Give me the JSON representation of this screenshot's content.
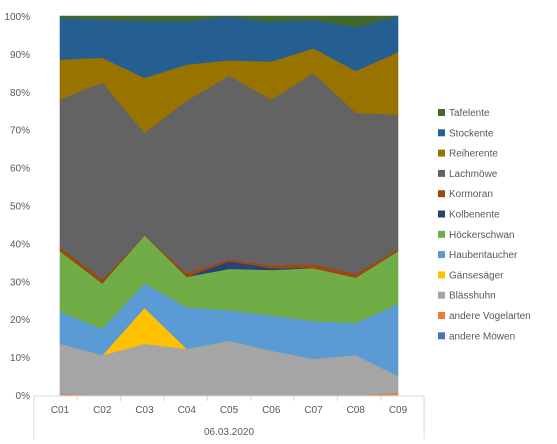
{
  "chart_data": {
    "type": "area",
    "stacked": "percent",
    "categories": [
      "C01",
      "C02",
      "C03",
      "C04",
      "C05",
      "C06",
      "C07",
      "C08",
      "C09"
    ],
    "group_label": "06.03.2020",
    "y_ticks": [
      "0%",
      "10%",
      "20%",
      "30%",
      "40%",
      "50%",
      "60%",
      "70%",
      "80%",
      "90%",
      "100%"
    ],
    "ylim": [
      0,
      100
    ],
    "grid": false,
    "legend_position": "right",
    "series": [
      {
        "name": "andere Möwen",
        "color": "#4472c4",
        "values": [
          0,
          0,
          0,
          0,
          0,
          0,
          0,
          0,
          0
        ]
      },
      {
        "name": "andere Vogelarten",
        "color": "#ed7d31",
        "values": [
          0.3,
          0,
          0,
          0,
          0,
          0,
          0,
          0,
          0.5
        ]
      },
      {
        "name": "Blässhuhn",
        "color": "#a5a5a5",
        "values": [
          13.2,
          10.5,
          13.5,
          12.2,
          14.3,
          11.7,
          9.5,
          10.5,
          4.5
        ]
      },
      {
        "name": "Gänsesäger",
        "color": "#ffc000",
        "values": [
          0,
          0,
          9.5,
          0,
          0,
          0,
          0,
          0,
          0
        ]
      },
      {
        "name": "Haubentaucher",
        "color": "#5b9bd5",
        "values": [
          8.5,
          7.0,
          6.5,
          11.0,
          8.0,
          9.3,
          10.0,
          8.5,
          19.0
        ]
      },
      {
        "name": "Höckerschwan",
        "color": "#70ad47",
        "values": [
          16.0,
          12.0,
          12.7,
          8.0,
          11.0,
          12.0,
          14.0,
          12.0,
          14.0
        ]
      },
      {
        "name": "Kolbenente",
        "color": "#264478",
        "values": [
          0,
          0,
          0,
          0,
          2.0,
          0.5,
          0,
          0,
          0
        ]
      },
      {
        "name": "Kormoran",
        "color": "#9e480e",
        "values": [
          1.0,
          1.0,
          0,
          1.0,
          0.5,
          0.7,
          1.0,
          1.0,
          0.5
        ]
      },
      {
        "name": "Lachmöwe",
        "color": "#636363",
        "values": [
          39.0,
          52.0,
          27.0,
          45.5,
          48.5,
          43.8,
          50.5,
          42.5,
          35.5
        ]
      },
      {
        "name": "Reiherente",
        "color": "#997300",
        "values": [
          10.5,
          6.5,
          14.5,
          9.5,
          4.0,
          10.0,
          6.5,
          11.0,
          16.5
        ]
      },
      {
        "name": "Stockente",
        "color": "#255e91",
        "values": [
          11.0,
          10.0,
          15.0,
          11.5,
          11.5,
          10.5,
          7.5,
          11.5,
          9.5
        ]
      },
      {
        "name": "Tafelente",
        "color": "#43682b",
        "values": [
          0.5,
          1.0,
          1.3,
          1.3,
          0.2,
          1.5,
          1.0,
          3.0,
          0
        ]
      }
    ]
  }
}
